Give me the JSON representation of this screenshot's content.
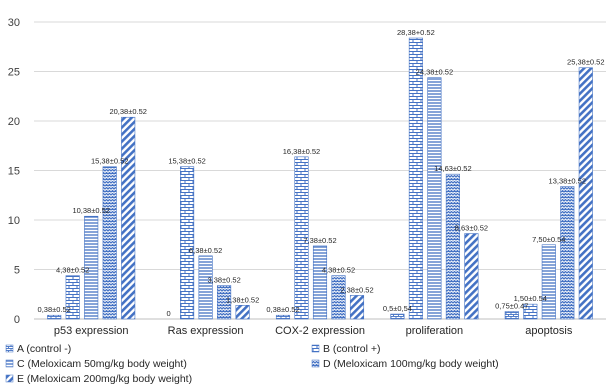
{
  "chart_data": {
    "type": "bar",
    "title": "",
    "xlabel": "",
    "ylabel": "",
    "ylim": [
      0,
      30
    ],
    "yticks": [
      0,
      5,
      10,
      15,
      20,
      25,
      30
    ],
    "grid": true,
    "legend_position": "bottom",
    "categories": [
      "p53 expression",
      "Ras expression",
      "COX-2 expression",
      "proliferation",
      "apoptosis"
    ],
    "series": [
      {
        "name": "A (control -)",
        "values": [
          0.38,
          0,
          0.38,
          0.5,
          0.75
        ],
        "labels": [
          "0,38±0.52",
          "0",
          "0,38±0.52",
          "0,5±0,54",
          "0,75±0.47"
        ],
        "pattern": "brick-small"
      },
      {
        "name": "B (control +)",
        "values": [
          4.38,
          15.38,
          16.38,
          28.38,
          1.5
        ],
        "labels": [
          "4,38±0.52",
          "15,38±0.52",
          "16,38±0.52",
          "28,38+0.52",
          "1,50±0.54"
        ],
        "pattern": "brick"
      },
      {
        "name": "C (Meloxicam 50mg/kg body weight)",
        "values": [
          10.38,
          6.38,
          7.38,
          24.38,
          7.5
        ],
        "labels": [
          "10,38±0.52",
          "6,38±0.52",
          "7,38±0.52",
          "24,38±0.52",
          "7,50±0.54"
        ],
        "pattern": "horizontal"
      },
      {
        "name": "D (Meloxicam 100mg/kg body weight)",
        "values": [
          15.38,
          3.38,
          4.38,
          14.63,
          13.38
        ],
        "labels": [
          "15,38±0.52",
          "3,38±0.52",
          "4,38±0.52",
          "14,63±0.52",
          "13,38±0.52"
        ],
        "pattern": "zigzag"
      },
      {
        "name": "E (Meloxicam 200mg/kg body weight)",
        "values": [
          20.38,
          1.38,
          2.38,
          8.63,
          25.38
        ],
        "labels": [
          "20,38±0.52",
          "1,38±0.52",
          "2,38±0.52",
          "8,63±0.52",
          "25,38±0.52"
        ],
        "pattern": "diagonal"
      }
    ]
  },
  "colors": {
    "bar": "#4472c4",
    "gridline": "#d9d9d9",
    "axis": "#bfbfbf",
    "text": "#262626"
  }
}
